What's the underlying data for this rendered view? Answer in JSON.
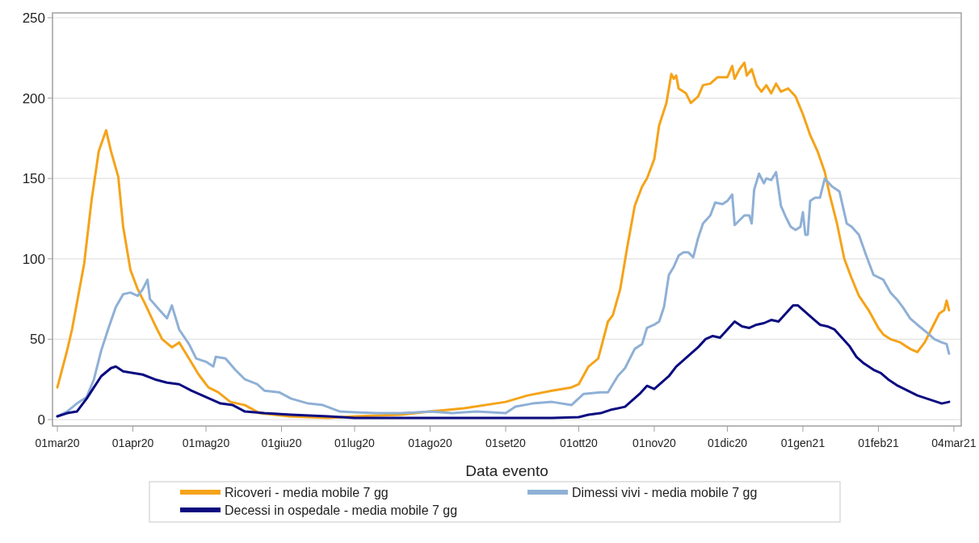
{
  "chart_data": {
    "type": "line",
    "xlabel": "Data evento",
    "xlim": [
      "2020-02-28",
      "2021-03-07"
    ],
    "ylim": [
      -4,
      253
    ],
    "xticks": [
      {
        "value": "2020-03-01",
        "label": "01mar20"
      },
      {
        "value": "2020-04-01",
        "label": "01apr20"
      },
      {
        "value": "2020-05-01",
        "label": "01mag20"
      },
      {
        "value": "2020-06-01",
        "label": "01giu20"
      },
      {
        "value": "2020-07-01",
        "label": "01lug20"
      },
      {
        "value": "2020-08-01",
        "label": "01ago20"
      },
      {
        "value": "2020-09-01",
        "label": "01set20"
      },
      {
        "value": "2020-10-01",
        "label": "01ott20"
      },
      {
        "value": "2020-11-01",
        "label": "01nov20"
      },
      {
        "value": "2020-12-01",
        "label": "01dic20"
      },
      {
        "value": "2021-01-01",
        "label": "01gen21"
      },
      {
        "value": "2021-02-01",
        "label": "01feb21"
      },
      {
        "value": "2021-03-04",
        "label": "04mar21"
      }
    ],
    "yticks": [
      0,
      50,
      100,
      150,
      200,
      250
    ],
    "grid": "y",
    "legend": "bottom",
    "line_style": "solid",
    "marker": "none",
    "series": [
      {
        "name": "Ricoveri - media mobile 7 gg",
        "color": "#f5a31a",
        "x": [
          "2020-03-01",
          "2020-03-05",
          "2020-03-07",
          "2020-03-12",
          "2020-03-15",
          "2020-03-18",
          "2020-03-21",
          "2020-03-23",
          "2020-03-26",
          "2020-03-28",
          "2020-03-31",
          "2020-04-03",
          "2020-04-06",
          "2020-04-10",
          "2020-04-13",
          "2020-04-17",
          "2020-04-20",
          "2020-04-24",
          "2020-04-28",
          "2020-05-02",
          "2020-05-06",
          "2020-05-11",
          "2020-05-17",
          "2020-05-23",
          "2020-06-04",
          "2020-06-20",
          "2020-07-01",
          "2020-07-20",
          "2020-08-01",
          "2020-08-15",
          "2020-09-01",
          "2020-09-10",
          "2020-09-20",
          "2020-09-28",
          "2020-10-01",
          "2020-10-05",
          "2020-10-09",
          "2020-10-13",
          "2020-10-15",
          "2020-10-18",
          "2020-10-21",
          "2020-10-24",
          "2020-10-27",
          "2020-10-29",
          "2020-11-01",
          "2020-11-03",
          "2020-11-06",
          "2020-11-08",
          "2020-11-09",
          "2020-11-10",
          "2020-11-11",
          "2020-11-14",
          "2020-11-16",
          "2020-11-19",
          "2020-11-21",
          "2020-11-24",
          "2020-11-27",
          "2020-12-01",
          "2020-12-03",
          "2020-12-04",
          "2020-12-06",
          "2020-12-08",
          "2020-12-09",
          "2020-12-11",
          "2020-12-13",
          "2020-12-15",
          "2020-12-17",
          "2020-12-19",
          "2020-12-21",
          "2020-12-23",
          "2020-12-26",
          "2020-12-29",
          "2021-01-01",
          "2021-01-04",
          "2021-01-07",
          "2021-01-10",
          "2021-01-12",
          "2021-01-15",
          "2021-01-18",
          "2021-01-21",
          "2021-01-24",
          "2021-01-28",
          "2021-02-01",
          "2021-02-03",
          "2021-02-06",
          "2021-02-10",
          "2021-02-14",
          "2021-02-17",
          "2021-02-20",
          "2021-02-23",
          "2021-02-26",
          "2021-02-28",
          "2021-03-01",
          "2021-03-02"
        ],
        "values": [
          20,
          43,
          56,
          97,
          136,
          167,
          180,
          167,
          151,
          120,
          93,
          81,
          72,
          59,
          50,
          45,
          48,
          38,
          28,
          20,
          17,
          11,
          9,
          4,
          2,
          1,
          2,
          3,
          5,
          7,
          11,
          15,
          18,
          20,
          22,
          33,
          38,
          61,
          65,
          81,
          108,
          133,
          145,
          150,
          162,
          183,
          197,
          215,
          212,
          214,
          206,
          203,
          197,
          201,
          208,
          209,
          213,
          213,
          220,
          212,
          218,
          222,
          214,
          218,
          208,
          204,
          208,
          203,
          209,
          204,
          206,
          201,
          190,
          177,
          167,
          154,
          140,
          122,
          100,
          88,
          77,
          68,
          57,
          53,
          50,
          48,
          44,
          42,
          48,
          57,
          66,
          68,
          74,
          68
        ]
      },
      {
        "name": "Dimessi vivi - media mobile 7 gg",
        "color": "#8fb0d6",
        "x": [
          "2020-03-01",
          "2020-03-05",
          "2020-03-09",
          "2020-03-13",
          "2020-03-16",
          "2020-03-19",
          "2020-03-22",
          "2020-03-25",
          "2020-03-28",
          "2020-03-31",
          "2020-04-03",
          "2020-04-05",
          "2020-04-07",
          "2020-04-08",
          "2020-04-12",
          "2020-04-15",
          "2020-04-17",
          "2020-04-20",
          "2020-04-24",
          "2020-04-27",
          "2020-05-01",
          "2020-05-04",
          "2020-05-05",
          "2020-05-09",
          "2020-05-13",
          "2020-05-17",
          "2020-05-22",
          "2020-05-25",
          "2020-05-31",
          "2020-06-05",
          "2020-06-12",
          "2020-06-18",
          "2020-06-25",
          "2020-07-01",
          "2020-07-10",
          "2020-07-20",
          "2020-08-01",
          "2020-08-10",
          "2020-08-20",
          "2020-09-01",
          "2020-09-05",
          "2020-09-12",
          "2020-09-20",
          "2020-09-28",
          "2020-10-03",
          "2020-10-10",
          "2020-10-13",
          "2020-10-17",
          "2020-10-20",
          "2020-10-24",
          "2020-10-27",
          "2020-10-29",
          "2020-11-01",
          "2020-11-03",
          "2020-11-05",
          "2020-11-07",
          "2020-11-09",
          "2020-11-11",
          "2020-11-13",
          "2020-11-15",
          "2020-11-17",
          "2020-11-19",
          "2020-11-21",
          "2020-11-24",
          "2020-11-26",
          "2020-11-29",
          "2020-12-01",
          "2020-12-03",
          "2020-12-04",
          "2020-12-06",
          "2020-12-08",
          "2020-12-10",
          "2020-12-11",
          "2020-12-12",
          "2020-12-14",
          "2020-12-16",
          "2020-12-17",
          "2020-12-19",
          "2020-12-21",
          "2020-12-23",
          "2020-12-25",
          "2020-12-27",
          "2020-12-29",
          "2020-12-31",
          "2021-01-01",
          "2021-01-02",
          "2021-01-03",
          "2021-01-04",
          "2021-01-06",
          "2021-01-08",
          "2021-01-10",
          "2021-01-13",
          "2021-01-16",
          "2021-01-19",
          "2021-01-21",
          "2021-01-24",
          "2021-01-27",
          "2021-01-30",
          "2021-02-03",
          "2021-02-06",
          "2021-02-09",
          "2021-02-11",
          "2021-02-14",
          "2021-02-17",
          "2021-02-21",
          "2021-02-24",
          "2021-02-27",
          "2021-03-01",
          "2021-03-02"
        ],
        "values": [
          2,
          5,
          10,
          14,
          25,
          43,
          57,
          70,
          78,
          79,
          77,
          81,
          87,
          75,
          68,
          63,
          71,
          56,
          47,
          38,
          36,
          33,
          39,
          38,
          31,
          25,
          22,
          18,
          17,
          13,
          10,
          9,
          5,
          4.5,
          4,
          4,
          5,
          4,
          5,
          4,
          8,
          10,
          11,
          9,
          16,
          17,
          17,
          27,
          32,
          44,
          47,
          57,
          59,
          61,
          70,
          90,
          95,
          102,
          104,
          104,
          101,
          113,
          122,
          127,
          135,
          134,
          136,
          140,
          121,
          124,
          127,
          127,
          122,
          143,
          153,
          147,
          150,
          149,
          154,
          133,
          126,
          120,
          118,
          120,
          129,
          115,
          115,
          136,
          138,
          138,
          150,
          145,
          142,
          122,
          120,
          115,
          102,
          90,
          87,
          79,
          74,
          70,
          63,
          59,
          54,
          50,
          48,
          47,
          41
        ]
      },
      {
        "name": "Decessi in ospedale - media mobile 7 gg",
        "color": "#0a0a80",
        "x": [
          "2020-03-01",
          "2020-03-05",
          "2020-03-09",
          "2020-03-13",
          "2020-03-16",
          "2020-03-19",
          "2020-03-23",
          "2020-03-25",
          "2020-03-28",
          "2020-04-01",
          "2020-04-05",
          "2020-04-10",
          "2020-04-15",
          "2020-04-20",
          "2020-04-25",
          "2020-05-01",
          "2020-05-07",
          "2020-05-12",
          "2020-05-17",
          "2020-05-25",
          "2020-06-05",
          "2020-06-20",
          "2020-07-01",
          "2020-08-01",
          "2020-09-01",
          "2020-09-20",
          "2020-10-01",
          "2020-10-05",
          "2020-10-10",
          "2020-10-14",
          "2020-10-20",
          "2020-10-23",
          "2020-10-26",
          "2020-10-29",
          "2020-11-01",
          "2020-11-04",
          "2020-11-07",
          "2020-11-10",
          "2020-11-13",
          "2020-11-16",
          "2020-11-19",
          "2020-11-22",
          "2020-11-25",
          "2020-11-28",
          "2020-12-01",
          "2020-12-04",
          "2020-12-07",
          "2020-12-10",
          "2020-12-13",
          "2020-12-16",
          "2020-12-19",
          "2020-12-22",
          "2020-12-25",
          "2020-12-28",
          "2020-12-30",
          "2021-01-02",
          "2021-01-05",
          "2021-01-08",
          "2021-01-11",
          "2021-01-14",
          "2021-01-17",
          "2021-01-20",
          "2021-01-23",
          "2021-01-26",
          "2021-01-30",
          "2021-02-02",
          "2021-02-05",
          "2021-02-09",
          "2021-02-13",
          "2021-02-17",
          "2021-02-21",
          "2021-02-25",
          "2021-02-27",
          "2021-03-02"
        ],
        "values": [
          2,
          4,
          5,
          13,
          20,
          27,
          32,
          33,
          30,
          29,
          28,
          25,
          23,
          22,
          18,
          14,
          10,
          9,
          5,
          4,
          3,
          2,
          1,
          1,
          1,
          1,
          1.5,
          3,
          4,
          6,
          8,
          12,
          16,
          21,
          19,
          23,
          27,
          33,
          37,
          41,
          45,
          50,
          52,
          51,
          56,
          61,
          58,
          57,
          59,
          60,
          62,
          61,
          66,
          71,
          71,
          67,
          63,
          59,
          58,
          56,
          51,
          46,
          39,
          35,
          31,
          29,
          25,
          21,
          18,
          15,
          13,
          11,
          10,
          11
        ]
      }
    ]
  }
}
